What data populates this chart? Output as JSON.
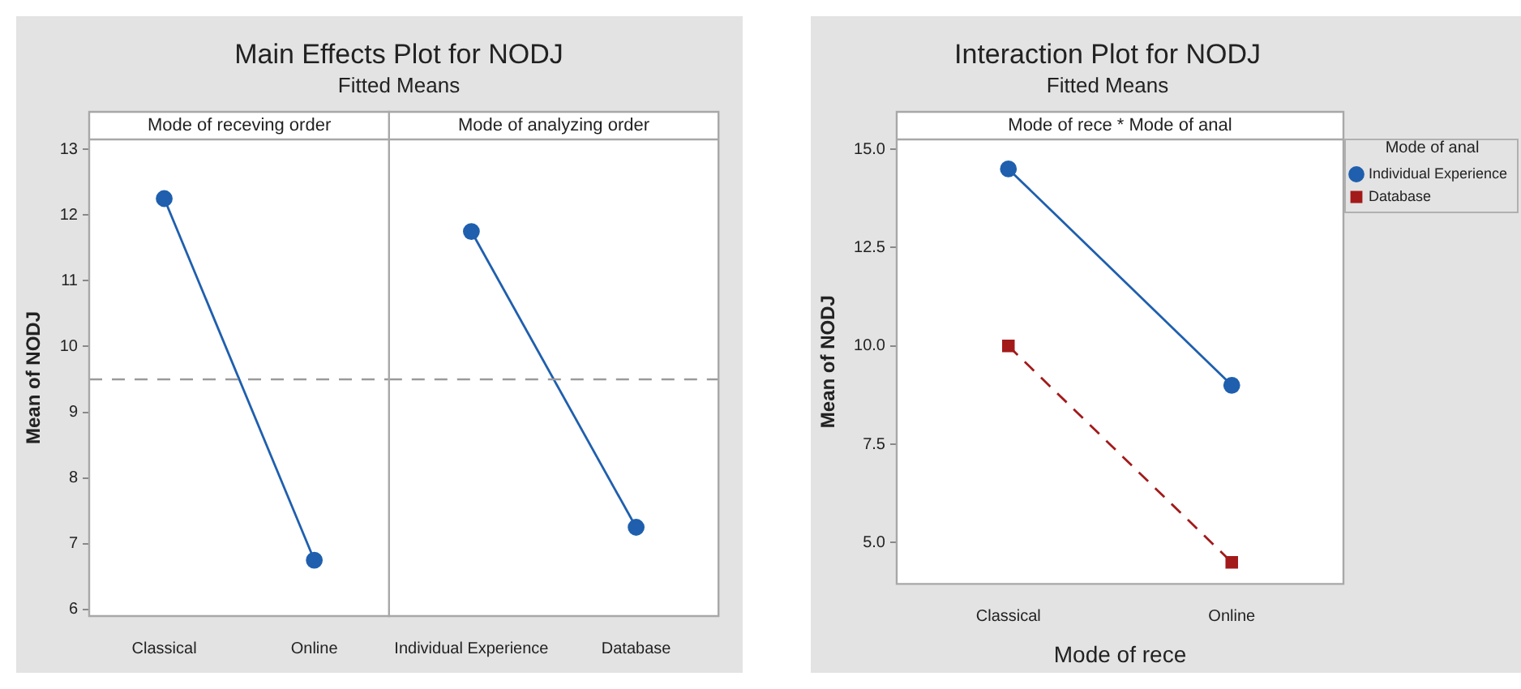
{
  "chart_data": [
    {
      "type": "line",
      "title": "Main Effects Plot for NODJ",
      "subtitle": "Fitted Means",
      "ylabel": "Mean of NODJ",
      "annotations": [
        "Mode of receving order"
      ],
      "categories": [
        "Classical",
        "Online"
      ],
      "series": [
        {
          "color": "#1f5fae",
          "values": [
            12.25,
            6.75
          ]
        }
      ],
      "ylim": [
        5.9,
        13.15
      ],
      "yticks": [
        6,
        7,
        8,
        9,
        10,
        11,
        12,
        13
      ],
      "marker": "circle",
      "line_style": "solid",
      "legend": false,
      "ref_lines": [
        {
          "axis": "y",
          "value": 9.5,
          "color": "#9a9a9a",
          "line_style": "dashed"
        }
      ]
    },
    {
      "type": "line",
      "annotations": [
        "Mode of analyzing order"
      ],
      "categories": [
        "Individual Experience",
        "Database"
      ],
      "series": [
        {
          "color": "#1f5fae",
          "values": [
            11.75,
            7.25
          ]
        }
      ],
      "ylim": [
        5.9,
        13.15
      ],
      "tick_labels": "x",
      "marker": "circle",
      "line_style": "solid",
      "legend": false,
      "ref_lines": [
        {
          "axis": "y",
          "value": 9.5,
          "color": "#9a9a9a",
          "line_style": "dashed"
        }
      ]
    },
    {
      "type": "line",
      "title": "Interaction Plot for NODJ",
      "subtitle": "Fitted Means",
      "xlabel": "Mode of rece",
      "ylabel": "Mean of NODJ",
      "legend_title": "Mode of anal",
      "annotations": [
        "Mode of rece * Mode of anal"
      ],
      "categories": [
        "Classical",
        "Online"
      ],
      "series": [
        {
          "name": "Individual Experience",
          "color": "#1f5fae",
          "values": [
            14.5,
            9.0
          ],
          "marker": "circle",
          "line_style": "solid"
        },
        {
          "name": "Database",
          "color": "#a31a1a",
          "values": [
            10.0,
            4.5
          ],
          "marker": "square",
          "line_style": "dashed"
        }
      ],
      "ylim": [
        3.95,
        15.25
      ],
      "yticks": [
        {
          "value": 5,
          "label": "5.0"
        },
        {
          "value": 7.5,
          "label": "7.5"
        },
        {
          "value": 10,
          "label": "10.0"
        },
        {
          "value": 12.5,
          "label": "12.5"
        },
        {
          "value": 15,
          "label": "15.0"
        }
      ],
      "legend": "right"
    }
  ]
}
